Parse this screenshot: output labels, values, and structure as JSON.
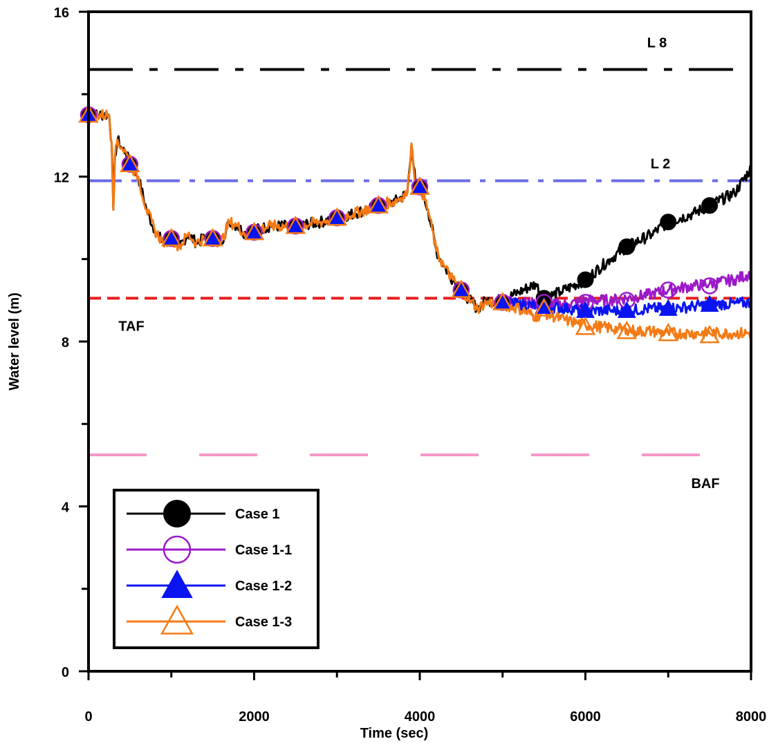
{
  "chart_data": {
    "type": "line",
    "xlabel": "Time (sec)",
    "ylabel": "Water level (m)",
    "xlim": [
      0,
      8000
    ],
    "ylim": [
      0,
      16
    ],
    "x_ticks": [
      0,
      2000,
      4000,
      6000,
      8000
    ],
    "y_ticks": [
      0,
      4,
      8,
      12,
      16
    ],
    "grid": false,
    "legend_position": "bottom-left",
    "reference_lines": [
      {
        "label": "L 8",
        "y": 14.6,
        "color": "#000000",
        "style": "long-dash-dot"
      },
      {
        "label": "L 2",
        "y": 11.9,
        "color": "#6a6ae8",
        "style": "dash-dot"
      },
      {
        "label": "TAF",
        "y": 9.05,
        "color": "#e81c1c",
        "style": "dash"
      },
      {
        "label": "BAF",
        "y": 5.25,
        "color": "#f596c8",
        "style": "long-dash"
      }
    ],
    "series": [
      {
        "name": "Case 1",
        "color": "#000000",
        "marker": "filled-circle",
        "x": [
          0,
          250,
          280,
          300,
          320,
          350,
          400,
          450,
          500,
          600,
          700,
          800,
          900,
          1000,
          1100,
          1200,
          1300,
          1400,
          1500,
          1600,
          1700,
          1800,
          1900,
          2000,
          2200,
          2500,
          2800,
          3000,
          3200,
          3500,
          3700,
          3850,
          3900,
          3950,
          4000,
          4100,
          4200,
          4300,
          4400,
          4500,
          4600,
          4700,
          4800,
          5000,
          5200,
          5400,
          5500,
          5700,
          6000,
          6300,
          6500,
          6800,
          7000,
          7300,
          7500,
          7800,
          8000
        ],
        "y": [
          13.5,
          13.5,
          12.8,
          11.2,
          12.5,
          12.9,
          12.7,
          12.6,
          12.3,
          12.0,
          11.2,
          10.7,
          10.4,
          10.5,
          10.3,
          10.6,
          10.4,
          10.5,
          10.5,
          10.4,
          10.9,
          10.8,
          10.6,
          10.7,
          10.8,
          10.8,
          10.9,
          11.0,
          11.1,
          11.3,
          11.4,
          11.6,
          12.8,
          11.8,
          11.8,
          11.2,
          10.2,
          9.8,
          9.5,
          9.3,
          9.0,
          8.8,
          9.0,
          9.0,
          9.2,
          9.4,
          9.05,
          9.2,
          9.5,
          10.0,
          10.3,
          10.6,
          10.9,
          11.1,
          11.3,
          11.6,
          12.2
        ],
        "marker_x": [
          0,
          500,
          1000,
          1500,
          2000,
          2500,
          3000,
          3500,
          4000,
          4500,
          5000,
          5500,
          6000,
          6500,
          7000,
          7500
        ],
        "marker_y": [
          13.5,
          12.3,
          10.5,
          10.5,
          10.65,
          10.8,
          11.0,
          11.3,
          11.75,
          9.25,
          8.95,
          9.05,
          9.5,
          10.3,
          10.9,
          11.3
        ]
      },
      {
        "name": "Case 1-1",
        "color": "#9b19c8",
        "marker": "open-circle",
        "x": [
          5000,
          5200,
          5500,
          5800,
          6000,
          6300,
          6500,
          6800,
          7000,
          7300,
          7500,
          7800,
          8000
        ],
        "y": [
          9.0,
          8.95,
          8.9,
          8.9,
          9.0,
          9.0,
          9.05,
          9.15,
          9.25,
          9.35,
          9.4,
          9.5,
          9.65
        ],
        "marker_x": [
          0,
          500,
          1000,
          1500,
          2000,
          2500,
          3000,
          3500,
          4000,
          4500,
          5000,
          5500,
          6000,
          6500,
          7000,
          7500
        ],
        "marker_y": [
          13.5,
          12.3,
          10.5,
          10.5,
          10.65,
          10.8,
          11.0,
          11.3,
          11.75,
          9.25,
          8.95,
          8.95,
          8.95,
          9.0,
          9.25,
          9.35
        ]
      },
      {
        "name": "Case 1-2",
        "color": "#0a14f0",
        "marker": "filled-triangle",
        "x": [
          5000,
          5200,
          5500,
          5800,
          6000,
          6300,
          6500,
          6800,
          7000,
          7300,
          7500,
          7800,
          8000
        ],
        "y": [
          8.95,
          8.9,
          8.85,
          8.8,
          8.75,
          8.75,
          8.75,
          8.8,
          8.8,
          8.85,
          8.9,
          8.92,
          8.95
        ],
        "marker_x": [
          0,
          500,
          1000,
          1500,
          2000,
          2500,
          3000,
          3500,
          4000,
          4500,
          5000,
          5500,
          6000,
          6500,
          7000,
          7500
        ],
        "marker_y": [
          13.5,
          12.3,
          10.5,
          10.5,
          10.65,
          10.8,
          11.0,
          11.3,
          11.75,
          9.25,
          8.95,
          8.85,
          8.75,
          8.75,
          8.8,
          8.9
        ]
      },
      {
        "name": "Case 1-3",
        "color": "#f57a14",
        "marker": "open-triangle",
        "x": [
          0,
          250,
          280,
          300,
          320,
          350,
          400,
          450,
          500,
          600,
          700,
          800,
          900,
          1000,
          1100,
          1200,
          1300,
          1400,
          1500,
          1600,
          1700,
          1800,
          1900,
          2000,
          2200,
          2500,
          2800,
          3000,
          3200,
          3500,
          3700,
          3850,
          3900,
          3950,
          4000,
          4100,
          4200,
          4300,
          4400,
          4500,
          4600,
          4700,
          4800,
          5000,
          5200,
          5400,
          5500,
          5700,
          5800,
          5900,
          6000,
          6200,
          6400,
          6500,
          6600,
          6800,
          7000,
          7200,
          7500,
          7800,
          8000
        ],
        "y": [
          13.5,
          13.5,
          12.8,
          11.2,
          12.5,
          12.9,
          12.7,
          12.6,
          12.3,
          12.0,
          11.2,
          10.7,
          10.4,
          10.5,
          10.3,
          10.6,
          10.4,
          10.5,
          10.5,
          10.4,
          10.9,
          10.8,
          10.6,
          10.7,
          10.8,
          10.8,
          10.9,
          11.0,
          11.1,
          11.3,
          11.4,
          11.6,
          12.8,
          11.8,
          11.8,
          11.2,
          10.2,
          9.8,
          9.5,
          9.3,
          9.0,
          8.8,
          8.95,
          8.9,
          8.8,
          8.6,
          8.7,
          8.55,
          8.5,
          8.45,
          8.4,
          8.35,
          8.3,
          8.3,
          8.25,
          8.25,
          8.2,
          8.2,
          8.2,
          8.2,
          8.2
        ],
        "marker_x": [
          0,
          500,
          1000,
          1500,
          2000,
          2500,
          3000,
          3500,
          4000,
          4500,
          5000,
          5500,
          6000,
          6500,
          7000,
          7500
        ],
        "marker_y": [
          13.5,
          12.3,
          10.5,
          10.5,
          10.65,
          10.8,
          11.0,
          11.3,
          11.75,
          9.25,
          8.95,
          8.8,
          8.35,
          8.25,
          8.2,
          8.15
        ]
      }
    ]
  }
}
